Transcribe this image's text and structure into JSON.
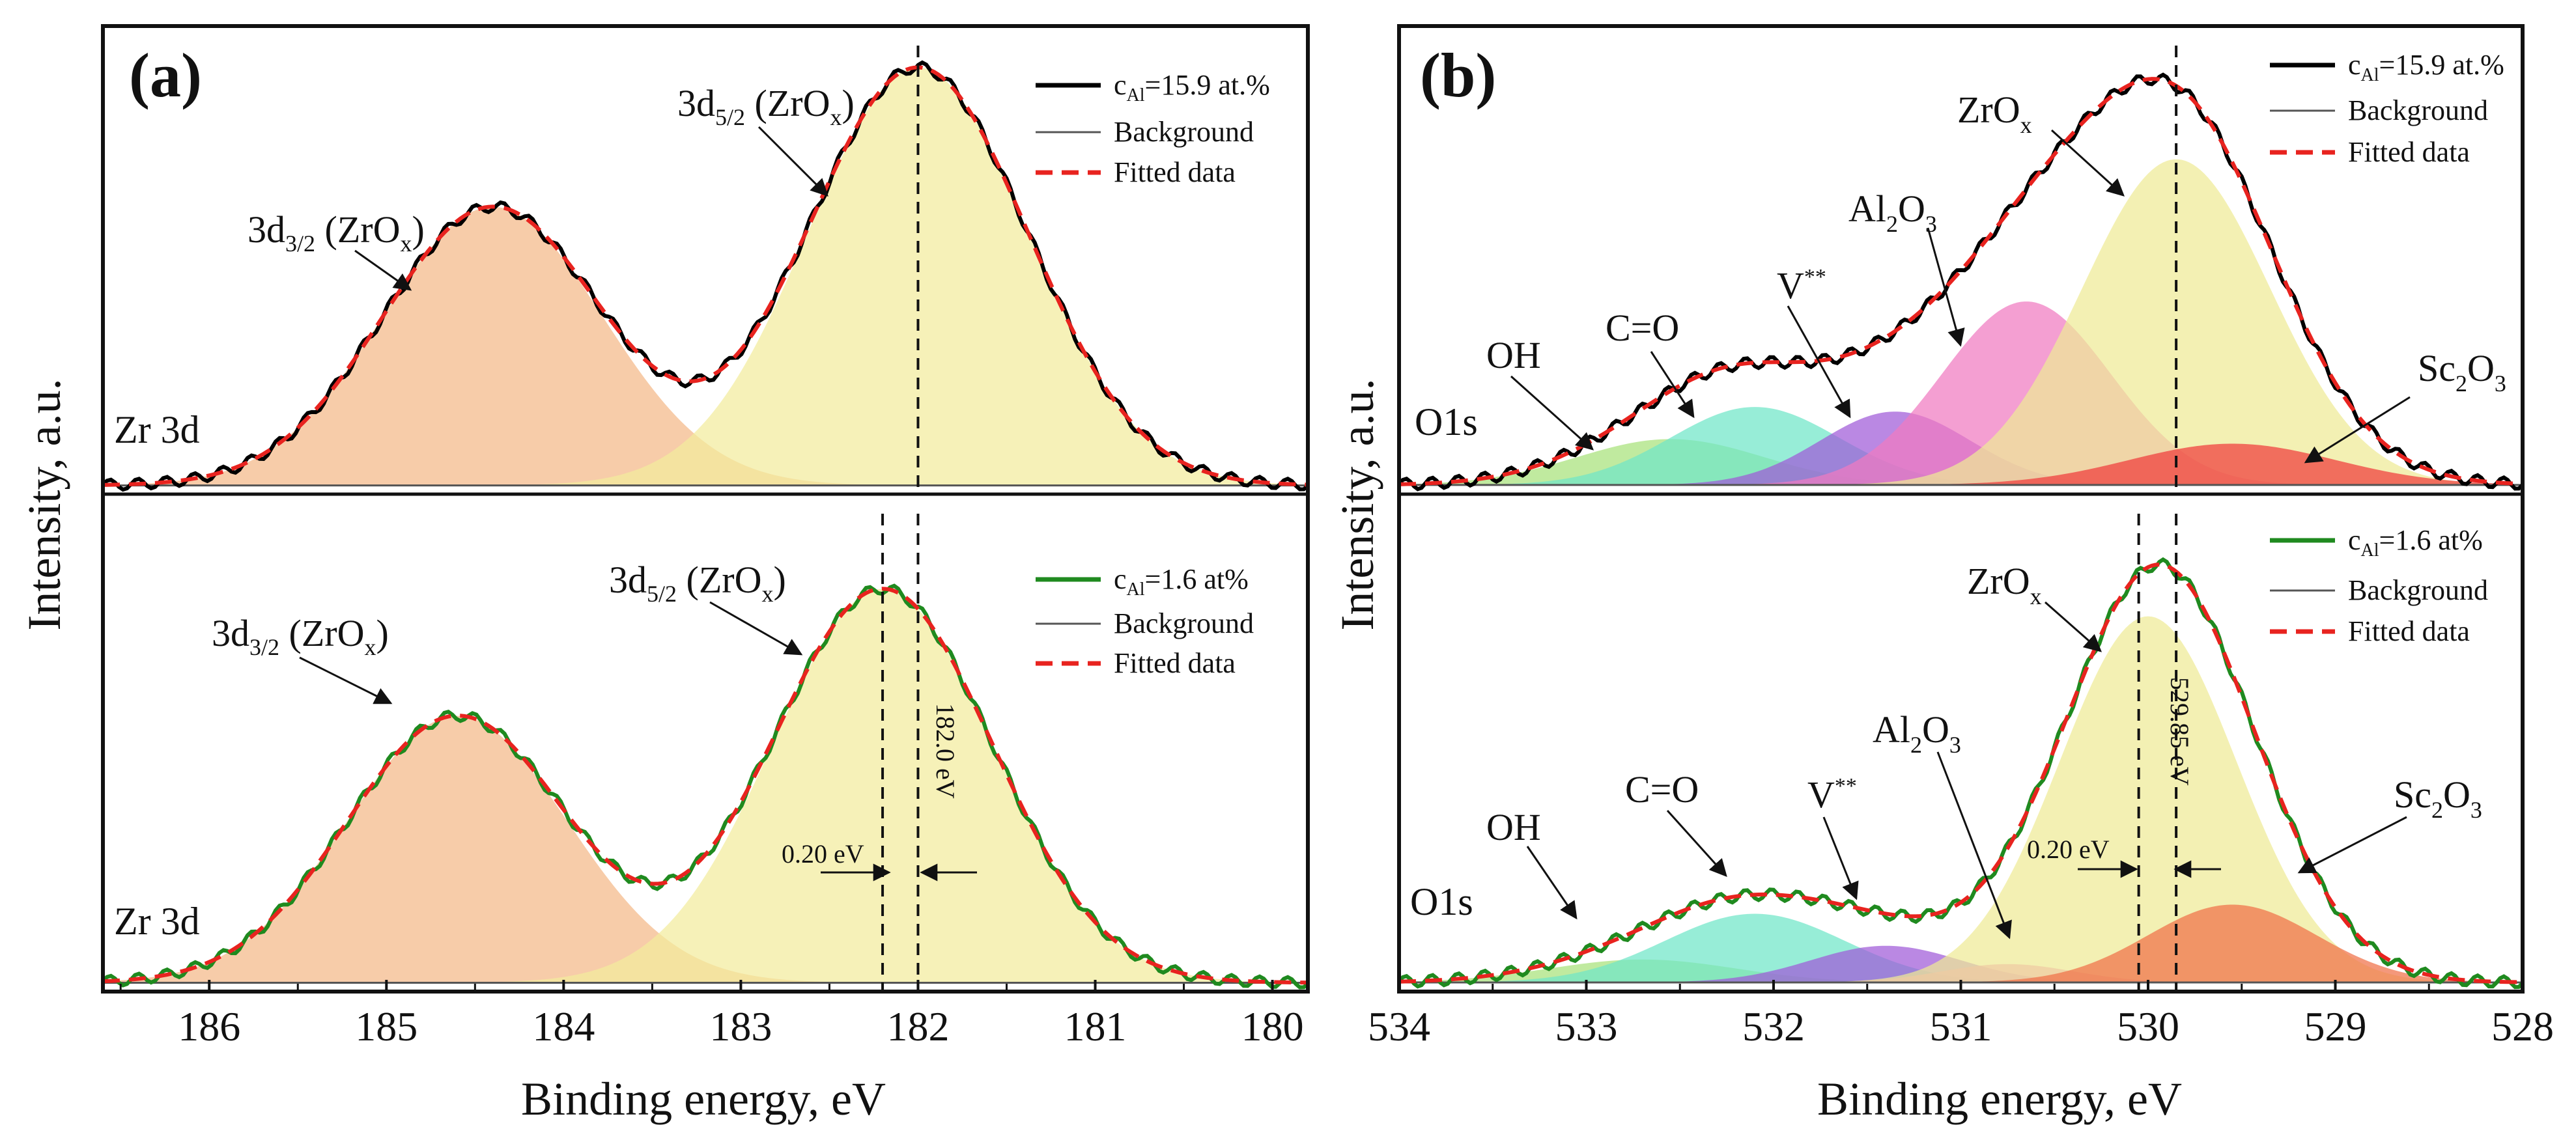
{
  "figure": {
    "y_axis_title": "Intensity, a.u.",
    "x_axis_title": "Binding energy, eV"
  },
  "chart_data": [
    {
      "type": "line",
      "panel": "(a)",
      "title": "",
      "xlabel": "Binding energy, eV",
      "ylabel": "Intensity, a.u.",
      "xlim": [
        186.6,
        179.8
      ],
      "xticks": [
        186,
        185,
        184,
        183,
        182,
        181,
        180
      ],
      "grid": false,
      "subplots": [
        {
          "region_label": "Zr 3d",
          "legend": {
            "measured": {
              "prefix": "c",
              "sub": "Al",
              "rest": "=15.9 at.%",
              "color": "#000000"
            },
            "background": {
              "label": "Background",
              "color": "#555555"
            },
            "fitted": {
              "label": "Fitted data",
              "color": "#e8231f"
            }
          },
          "baseline": 0.02,
          "peaks": [
            {
              "name": "3d3/2 (ZrOx)",
              "center": 184.4,
              "amp": 0.64,
              "sigma": 0.62,
              "fill": "#f4b888"
            },
            {
              "name": "3d5/2 (ZrOx)",
              "center": 182.0,
              "amp": 0.96,
              "sigma": 0.62,
              "fill": "#f2eb9c"
            }
          ],
          "annotations": [
            {
              "base": "3d",
              "sub": "3/2",
              "rest": " (ZrO",
              "sub2": "x",
              "close": ")"
            },
            {
              "base": "3d",
              "sub": "5/2",
              "rest": " (ZrO",
              "sub2": "x",
              "close": ")"
            }
          ],
          "vlines": [
            182.0
          ]
        },
        {
          "region_label": "Zr 3d",
          "legend": {
            "measured": {
              "prefix": "c",
              "sub": "Al",
              "rest": "=1.6 at%",
              "color": "#1f8a1f"
            },
            "background": {
              "label": "Background",
              "color": "#555555"
            },
            "fitted": {
              "label": "Fitted data",
              "color": "#e8231f"
            }
          },
          "baseline": 0.02,
          "peaks": [
            {
              "name": "3d3/2 (ZrOx)",
              "center": 184.6,
              "amp": 0.61,
              "sigma": 0.62,
              "fill": "#f4b888"
            },
            {
              "name": "3d5/2 (ZrOx)",
              "center": 182.2,
              "amp": 0.9,
              "sigma": 0.62,
              "fill": "#f2eb9c"
            }
          ],
          "annotations": [
            {
              "base": "3d",
              "sub": "3/2",
              "rest": " (ZrO",
              "sub2": "x",
              "close": ")"
            },
            {
              "base": "3d",
              "sub": "5/2",
              "rest": " (ZrO",
              "sub2": "x",
              "close": ")"
            }
          ],
          "vlines": [
            182.2,
            182.0
          ],
          "shift_label": "0.20 eV",
          "position_label": "182.0 eV"
        }
      ]
    },
    {
      "type": "line",
      "panel": "(b)",
      "title": "",
      "xlabel": "Binding energy, eV",
      "ylabel": "Intensity, a.u.",
      "xlim": [
        534,
        528
      ],
      "xticks": [
        534,
        533,
        532,
        531,
        530,
        529,
        528
      ],
      "grid": false,
      "subplots": [
        {
          "region_label": "O1s",
          "legend": {
            "measured": {
              "prefix": "c",
              "sub": "Al",
              "rest": "=15.9 at.%",
              "color": "#000000"
            },
            "background": {
              "label": "Background",
              "color": "#555555"
            },
            "fitted": {
              "label": "Fitted data",
              "color": "#e8231f"
            }
          },
          "baseline": 0.02,
          "peaks": [
            {
              "name": "OH",
              "center": 532.55,
              "amp": 0.1,
              "sigma": 0.5,
              "fill": "#a8e27a"
            },
            {
              "name": "C=O",
              "center": 532.1,
              "amp": 0.17,
              "sigma": 0.45,
              "fill": "#6fe6c8"
            },
            {
              "name": "V**",
              "center": 531.35,
              "amp": 0.16,
              "sigma": 0.4,
              "fill": "#a05ad8"
            },
            {
              "name": "Al2O3",
              "center": 530.65,
              "amp": 0.4,
              "sigma": 0.45,
              "fill": "#f07ac0"
            },
            {
              "name": "ZrOx",
              "center": 529.85,
              "amp": 0.71,
              "sigma": 0.5,
              "fill": "#eeea95"
            },
            {
              "name": "Sc2O3",
              "center": 529.55,
              "amp": 0.09,
              "sigma": 0.55,
              "fill": "#f03c3c"
            }
          ],
          "annotations": [
            {
              "text": "OH"
            },
            {
              "text": "C=O"
            },
            {
              "base": "V",
              "sup": "**"
            },
            {
              "base": "Al",
              "sub": "2",
              "rest": "O",
              "sub2": "3"
            },
            {
              "base": "ZrO",
              "sub": "x"
            },
            {
              "base": "Sc",
              "sub": "2",
              "rest": "O",
              "sub2": "3"
            }
          ],
          "vlines": [
            529.85
          ]
        },
        {
          "region_label": "O1s",
          "legend": {
            "measured": {
              "prefix": "c",
              "sub": "Al",
              "rest": "=1.6 at%",
              "color": "#1f8a1f"
            },
            "background": {
              "label": "Background",
              "color": "#555555"
            },
            "fitted": {
              "label": "Fitted data",
              "color": "#e8231f"
            }
          },
          "baseline": 0.02,
          "peaks": [
            {
              "name": "OH",
              "center": 532.7,
              "amp": 0.05,
              "sigma": 0.5,
              "fill": "#a8e27a"
            },
            {
              "name": "C=O",
              "center": 532.1,
              "amp": 0.15,
              "sigma": 0.48,
              "fill": "#6fe6c8"
            },
            {
              "name": "V**",
              "center": 531.4,
              "amp": 0.08,
              "sigma": 0.4,
              "fill": "#a05ad8"
            },
            {
              "name": "Al2O3",
              "center": 530.75,
              "amp": 0.04,
              "sigma": 0.35,
              "fill": "#f07ac0"
            },
            {
              "name": "ZrOx",
              "center": 530.0,
              "amp": 0.8,
              "sigma": 0.47,
              "fill": "#eeea95"
            },
            {
              "name": "Sc2O3",
              "center": 529.55,
              "amp": 0.17,
              "sigma": 0.45,
              "fill": "#f07048"
            }
          ],
          "annotations": [
            {
              "text": "OH"
            },
            {
              "text": "C=O"
            },
            {
              "base": "V",
              "sup": "**"
            },
            {
              "base": "Al",
              "sub": "2",
              "rest": "O",
              "sub2": "3"
            },
            {
              "base": "ZrO",
              "sub": "x"
            },
            {
              "base": "Sc",
              "sub": "2",
              "rest": "O",
              "sub2": "3"
            }
          ],
          "vlines": [
            530.05,
            529.85
          ],
          "shift_label": "0.20 eV",
          "position_label": "529.85 eV"
        }
      ]
    }
  ]
}
